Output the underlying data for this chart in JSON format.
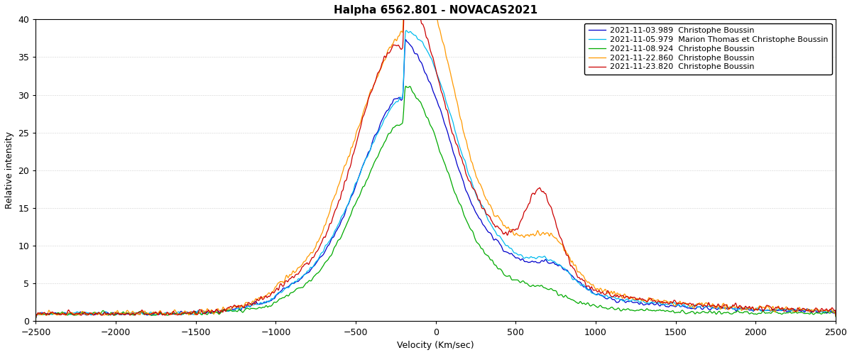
{
  "title": "Halpha 6562.801 - NOVACAS2021",
  "xlabel": "Velocity (Km/sec)",
  "ylabel": "Relative intensity",
  "xlim": [
    -2500,
    2500
  ],
  "ylim": [
    0,
    40
  ],
  "yticks": [
    0,
    5,
    10,
    15,
    20,
    25,
    30,
    35,
    40
  ],
  "xticks": [
    -2500,
    -2000,
    -1500,
    -1000,
    -500,
    0,
    500,
    1000,
    1500,
    2000,
    2500
  ],
  "series": [
    {
      "label": "2021-11-03.989  Christophe Boussin",
      "color": "#0000cc",
      "lw": 0.9
    },
    {
      "label": "2021-11-05.979  Marion Thomas et Christophe Boussin",
      "color": "#00bbee",
      "lw": 0.9
    },
    {
      "label": "2021-11-08.924  Christophe Boussin",
      "color": "#00aa00",
      "lw": 0.9
    },
    {
      "label": "2021-11-22.860  Christophe Boussin",
      "color": "#ff9900",
      "lw": 0.9
    },
    {
      "label": "2021-11-23.820  Christophe Boussin",
      "color": "#cc0000",
      "lw": 0.9
    }
  ],
  "bg_color": "#ffffff",
  "title_fontsize": 11,
  "axis_fontsize": 9,
  "legend_fontsize": 8.0
}
